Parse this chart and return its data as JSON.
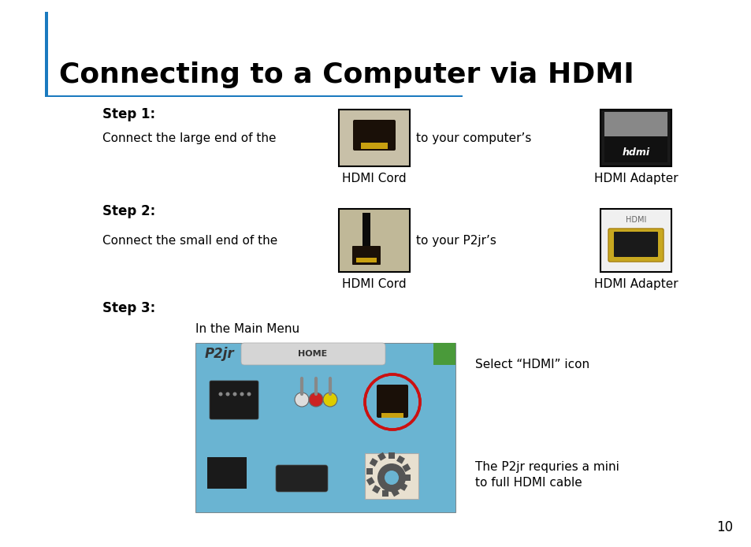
{
  "title": "Connecting to a Computer via HDMI",
  "title_fontsize": 26,
  "title_fontweight": "bold",
  "title_color": "#000000",
  "background_color": "#ffffff",
  "accent_line_color": "#1a7abf",
  "page_number": "10",
  "step1_label": "Step 1:",
  "step1_text": "Connect the large end of the",
  "step1_mid": "to your computer’s",
  "step1_img1_label": "HDMI Cord",
  "step1_img2_label": "HDMI Adapter",
  "step2_label": "Step 2:",
  "step2_text": "Connect the small end of the",
  "step2_mid": "to your P2jr’s",
  "step2_img1_label": "HDMI Cord",
  "step2_img2_label": "HDMI Adapter",
  "step3_label": "Step 3:",
  "step3_submenu": "In the Main Menu",
  "step3_select": "Select “HDMI” icon",
  "step3_note1": "The P2jr requries a mini",
  "step3_note2": "to full HDMI cable",
  "vertical_bar_color": "#1a7abf",
  "img_border_color": "#000000",
  "img_border_linewidth": 1.5,
  "step_fontsize": 12,
  "step_fontweight": "bold",
  "body_fontsize": 11,
  "label_fontsize": 11,
  "screen_bg": "#6ab4d2",
  "screen_green": "#4a9a3a"
}
